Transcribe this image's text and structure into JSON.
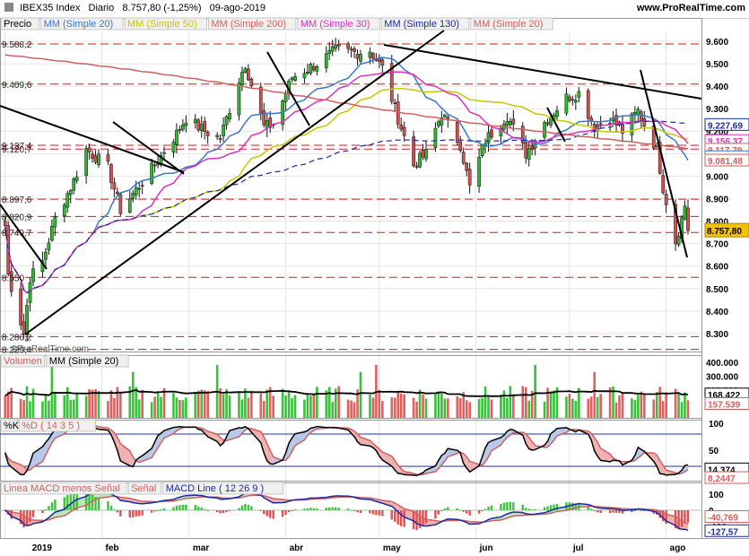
{
  "header": {
    "symbol": "IBEX35 Index",
    "interval": "Diario",
    "price_change": "8.757,80 (-1,25%)",
    "date": "09-ago-2019",
    "site": "www.ProRealTime.com"
  },
  "price_panel": {
    "name": "Precio",
    "indicators": [
      {
        "label": "MM (Simple 20)",
        "color": "#3a78c8"
      },
      {
        "label": "MM (Simple 50)",
        "color": "#c8c800"
      },
      {
        "label": "MM (Simple 200)",
        "color": "#d06060"
      },
      {
        "label": "MM (Simple 30)",
        "color": "#e030c0"
      },
      {
        "label": "MM (Simple 130)",
        "color": "#1a2aa0"
      },
      {
        "label": "MM (Simple 20)",
        "color": "#d06060"
      }
    ],
    "axis_ticks": [
      "9.600",
      "9.500",
      "9.400",
      "9.300",
      "9.200",
      "9.100",
      "9.000",
      "8.900",
      "8.800",
      "8.700",
      "8.600",
      "8.500",
      "8.400",
      "8.300"
    ],
    "level_labels": [
      "9.588,2",
      "9.409,6",
      "9.137,4",
      "9.120,7",
      "8.897,6",
      "8.820,9",
      "8.749,7",
      "8.550",
      "8.286,2",
      "8.229,4"
    ],
    "right_tags": [
      {
        "text": "9.227,69",
        "color": "#1a2aa0"
      },
      {
        "text": "9.156,37",
        "color": "#e030c0"
      },
      {
        "text": "9.117,79",
        "color": "#d06060"
      },
      {
        "text": "9.084,48",
        "color": "#3a78c8"
      },
      {
        "text": "9.081,48",
        "color": "#d06060"
      },
      {
        "text": "8.757,80",
        "color": "#f2c200"
      }
    ],
    "watermark": "©ProRealTime.com"
  },
  "volume_panel": {
    "name": "Volumen",
    "indicator": "MM (Simple 20)",
    "axis_ticks": [
      "400.000",
      "300.000",
      "200.000"
    ],
    "tags": [
      {
        "text": "168.422",
        "color": "#000000"
      },
      {
        "text": "157.539",
        "color": "#d06060"
      }
    ]
  },
  "stoch_panel": {
    "k_label": "%K",
    "d_label": "%D ( 14 3 5 )",
    "axis_ticks": [
      "100",
      "50",
      "0"
    ],
    "tags": [
      {
        "text": "14,374",
        "color": "#000000"
      },
      {
        "text": "8,2447",
        "color": "#d06060"
      }
    ]
  },
  "macd_panel": {
    "hist_label": "Linea MACD menos Señal",
    "signal_label": "Señal",
    "macd_label": "MACD Line ( 12 26 9 )",
    "axis_ticks": [
      "100",
      "0",
      "-100"
    ],
    "tags": [
      {
        "text": "-40,769",
        "color": "#d06060"
      },
      {
        "text": "-127,57",
        "color": "#1a2aa0"
      }
    ]
  },
  "x_axis": {
    "months": [
      "2019",
      "feb",
      "mar",
      "abr",
      "may",
      "jun",
      "jul",
      "ago"
    ]
  },
  "chart_data": {
    "type": "candlestick",
    "title": "IBEX35 Index",
    "ylim": [
      8220,
      9640
    ],
    "months": [
      "2019",
      "feb",
      "mar",
      "abr",
      "may",
      "jun",
      "jul",
      "ago"
    ],
    "close_points": [
      [
        "2019-01-02",
        8780
      ],
      [
        "2019-01-03",
        8560
      ],
      [
        "2019-01-08",
        8300
      ],
      [
        "2019-01-10",
        8550
      ],
      [
        "2019-01-14",
        8620
      ],
      [
        "2019-01-18",
        8810
      ],
      [
        "2019-01-24",
        8980
      ],
      [
        "2019-01-28",
        9120
      ],
      [
        "2019-02-04",
        9040
      ],
      [
        "2019-02-08",
        8850
      ],
      [
        "2019-02-13",
        8940
      ],
      [
        "2019-02-19",
        9050
      ],
      [
        "2019-02-26",
        9190
      ],
      [
        "2019-03-01",
        9260
      ],
      [
        "2019-03-07",
        9200
      ],
      [
        "2019-03-12",
        9170
      ],
      [
        "2019-03-18",
        9430
      ],
      [
        "2019-03-20",
        9500
      ],
      [
        "2019-03-26",
        9220
      ],
      [
        "2019-03-29",
        9230
      ],
      [
        "2019-04-04",
        9440
      ],
      [
        "2019-04-12",
        9500
      ],
      [
        "2019-04-18",
        9560
      ],
      [
        "2019-04-25",
        9550
      ],
      [
        "2019-04-29",
        9560
      ],
      [
        "2019-05-03",
        9480
      ],
      [
        "2019-05-07",
        9300
      ],
      [
        "2019-05-13",
        9050
      ],
      [
        "2019-05-17",
        9100
      ],
      [
        "2019-05-22",
        9280
      ],
      [
        "2019-05-28",
        9140
      ],
      [
        "2019-05-31",
        8950
      ],
      [
        "2019-06-05",
        9160
      ],
      [
        "2019-06-12",
        9270
      ],
      [
        "2019-06-18",
        9100
      ],
      [
        "2019-06-24",
        9240
      ],
      [
        "2019-07-01",
        9350
      ],
      [
        "2019-07-05",
        9370
      ],
      [
        "2019-07-10",
        9220
      ],
      [
        "2019-07-15",
        9260
      ],
      [
        "2019-07-19",
        9200
      ],
      [
        "2019-07-24",
        9290
      ],
      [
        "2019-07-26",
        9230
      ],
      [
        "2019-07-30",
        9120
      ],
      [
        "2019-08-01",
        8950
      ],
      [
        "2019-08-05",
        8710
      ],
      [
        "2019-08-07",
        8810
      ],
      [
        "2019-08-08",
        8870
      ],
      [
        "2019-08-09",
        8757.8
      ]
    ]
  }
}
